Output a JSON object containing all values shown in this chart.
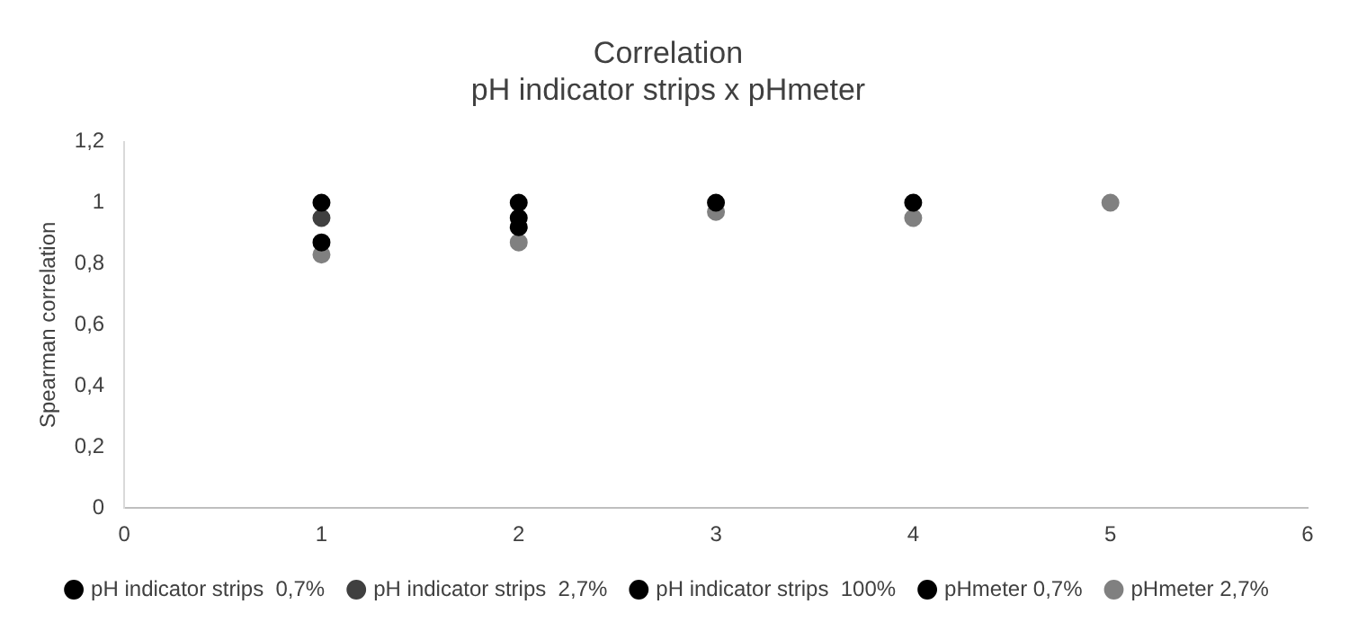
{
  "chart_data": {
    "type": "scatter",
    "title": "Correlation",
    "subtitle": "pH indicator strips x pHmeter",
    "ylabel": "Spearman correlation",
    "xlim": [
      0,
      6
    ],
    "xticks": [
      0,
      1,
      2,
      3,
      4,
      5,
      6
    ],
    "ylim": [
      0,
      1.2
    ],
    "yticks": [
      0,
      {
        "value": 0.2,
        "label": "0,2"
      },
      {
        "value": 0.4,
        "label": "0,4"
      },
      {
        "value": 0.6,
        "label": "0,6"
      },
      {
        "value": 0.8,
        "label": "0,8"
      },
      1,
      {
        "value": 1.2,
        "label": "1,2"
      }
    ],
    "grid": false,
    "legend": "bottom",
    "marker": "circle",
    "series": [
      {
        "name": "pH indicator strips  0,7%",
        "color": "#000000",
        "x": [
          1,
          2,
          3,
          4
        ],
        "values": [
          1,
          1,
          1,
          1
        ]
      },
      {
        "name": "pH indicator strips  2,7%",
        "color": "#404040",
        "x": [
          1
        ],
        "values": [
          0.95
        ]
      },
      {
        "name": "pH indicator strips  100%",
        "color": "#000000",
        "x": [
          1,
          2
        ],
        "values": [
          0.87,
          0.95
        ]
      },
      {
        "name": "pHmeter 0,7%",
        "color": "#000000",
        "x": [
          2
        ],
        "values": [
          0.92
        ]
      },
      {
        "name": "pHmeter 2,7%",
        "color": "#808080",
        "x": [
          1,
          2,
          3,
          4,
          5
        ],
        "values": [
          0.83,
          0.87,
          0.97,
          0.95,
          1
        ]
      }
    ]
  }
}
